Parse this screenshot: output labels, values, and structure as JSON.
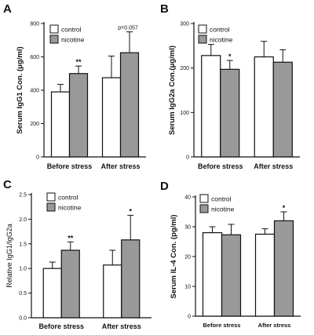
{
  "colors": {
    "control": "#ffffff",
    "nicotine": "#999999",
    "axis": "#111111"
  },
  "chart_data": [
    {
      "panel": "A",
      "type": "bar",
      "ylabel": "Serum IgG1 Con. (μg/ml)",
      "categories": [
        "Before stress",
        "After stress"
      ],
      "ylim": [
        0,
        800
      ],
      "yticks": [
        0,
        200,
        400,
        600,
        800
      ],
      "ytick_labels": [
        "0",
        "200",
        "400",
        "600",
        "800"
      ],
      "legend": [
        "control",
        "nicotine"
      ],
      "legend_placement": "top-left",
      "series": [
        {
          "name": "control",
          "values": [
            390,
            475
          ],
          "errors": [
            45,
            130
          ]
        },
        {
          "name": "nicotine",
          "values": [
            500,
            625
          ],
          "errors": [
            45,
            125
          ]
        }
      ],
      "annotations": [
        "**",
        "p=0.057"
      ]
    },
    {
      "panel": "B",
      "type": "bar",
      "ylabel": "Serum IgG2a Con.(μg/ml)",
      "categories": [
        "Before stress",
        "After stress"
      ],
      "ylim": [
        0,
        300
      ],
      "yticks": [
        0,
        100,
        200,
        300
      ],
      "ytick_labels": [
        "0",
        "100",
        "200",
        "300"
      ],
      "legend": [
        "control",
        "nicotine"
      ],
      "legend_placement": "top-left",
      "series": [
        {
          "name": "control",
          "values": [
            228,
            225
          ],
          "errors": [
            25,
            35
          ]
        },
        {
          "name": "nicotine",
          "values": [
            197,
            213
          ],
          "errors": [
            20,
            28
          ]
        }
      ],
      "annotations": [
        "*"
      ]
    },
    {
      "panel": "C",
      "type": "bar",
      "ylabel": "Relative IgG1/IgG2a",
      "categories": [
        "Before stress",
        "After stress"
      ],
      "ylim": [
        0,
        2.5
      ],
      "yticks": [
        0,
        0.5,
        1.0,
        1.5,
        2.0,
        2.5
      ],
      "ytick_labels": [
        "0.0",
        "0.5",
        "1.0",
        "1.5",
        "2.0",
        "2.5"
      ],
      "legend": [
        "control",
        "nicotine"
      ],
      "legend_placement": "top-left",
      "series": [
        {
          "name": "control",
          "values": [
            1.0,
            1.07
          ],
          "errors": [
            0.13,
            0.3
          ]
        },
        {
          "name": "nicotine",
          "values": [
            1.37,
            1.58
          ],
          "errors": [
            0.17,
            0.5
          ]
        }
      ],
      "annotations": [
        "**",
        "*"
      ]
    },
    {
      "panel": "D",
      "type": "bar",
      "ylabel": "Serum IL-4 Con. (pg/ml)",
      "categories": [
        "Before stress",
        "After stress"
      ],
      "ylim": [
        0,
        40
      ],
      "yticks": [
        0,
        10,
        20,
        30,
        40
      ],
      "ytick_labels": [
        "0",
        "10",
        "20",
        "30",
        "40"
      ],
      "legend": [
        "control",
        "nicotine"
      ],
      "legend_placement": "top-left",
      "series": [
        {
          "name": "control",
          "values": [
            28,
            27.5
          ],
          "errors": [
            2,
            1.8
          ]
        },
        {
          "name": "nicotine",
          "values": [
            27.3,
            32
          ],
          "errors": [
            3.5,
            3
          ]
        }
      ],
      "annotations": [
        "*"
      ]
    }
  ]
}
